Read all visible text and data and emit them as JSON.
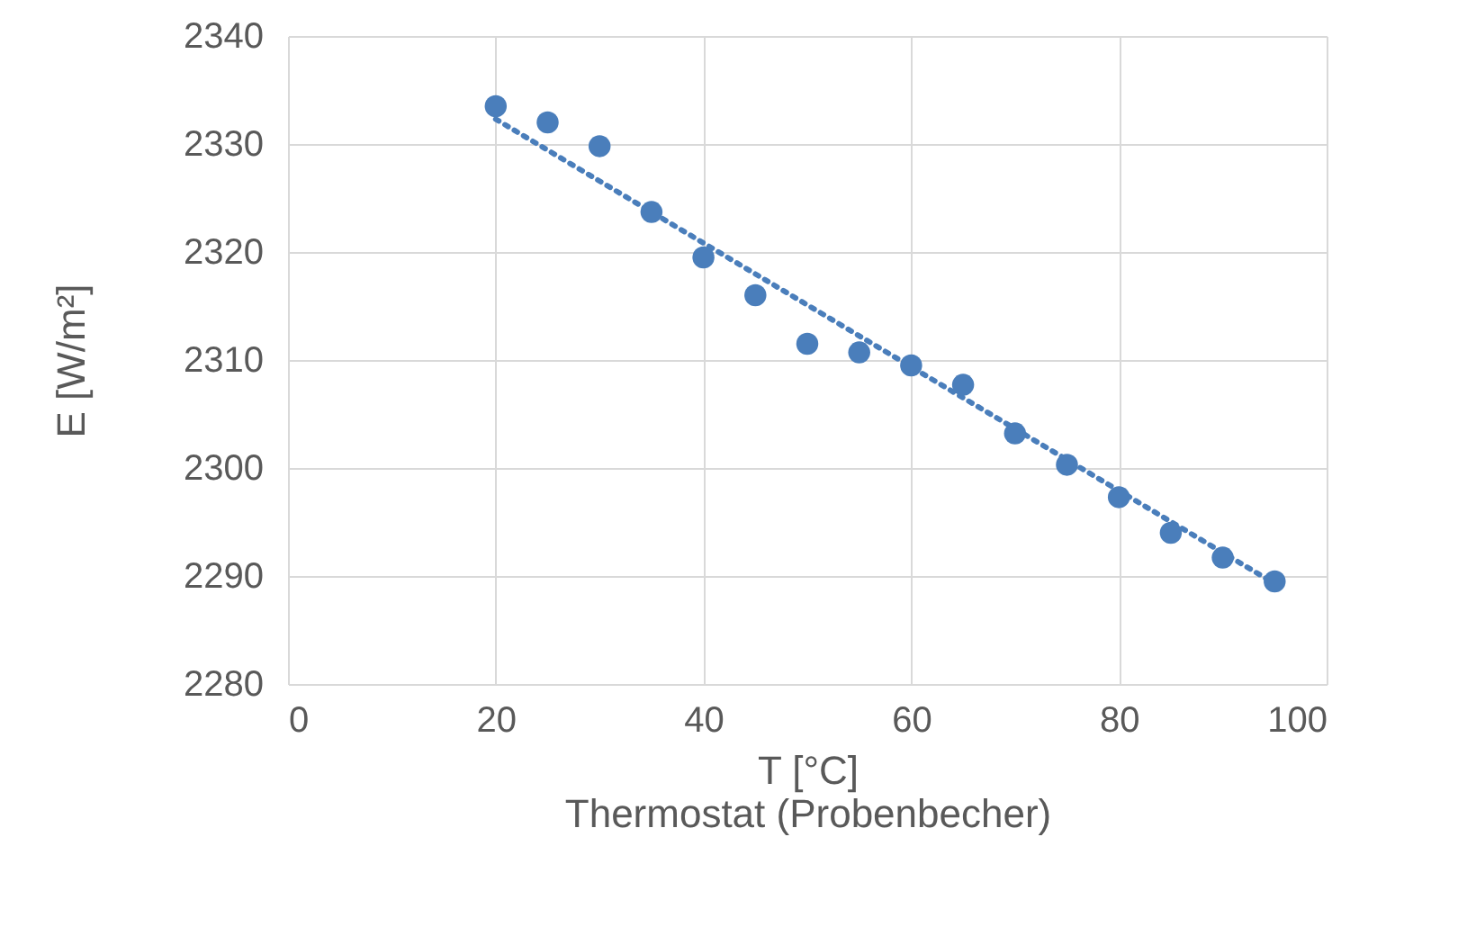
{
  "chart_data": {
    "type": "scatter",
    "xlabel": "T [°C]\nThermostat (Probenbecher)",
    "ylabel": "E [W/m²]",
    "xlim": [
      0,
      100
    ],
    "ylim": [
      2280,
      2340
    ],
    "xticks": [
      0,
      20,
      40,
      60,
      80,
      100
    ],
    "yticks": [
      2280,
      2290,
      2300,
      2310,
      2320,
      2330,
      2340
    ],
    "grid": true,
    "marker": "circle",
    "series": [
      {
        "color": "#4a7ebb",
        "x": [
          20,
          25,
          30,
          35,
          40,
          45,
          50,
          55,
          60,
          65,
          70,
          75,
          80,
          85,
          90,
          95
        ],
        "values": [
          2333.5,
          2332.0,
          2329.8,
          2323.7,
          2319.5,
          2316.0,
          2311.5,
          2310.7,
          2309.5,
          2307.7,
          2303.2,
          2300.3,
          2297.3,
          2294.0,
          2291.7,
          2289.5
        ]
      },
      {
        "type": "line",
        "color": "#4a7ebb",
        "line_style": "dotted",
        "marker": "none",
        "x": [
          20,
          57.5,
          95
        ],
        "values": [
          2332.3,
          2310.8,
          2289.3
        ]
      }
    ]
  }
}
